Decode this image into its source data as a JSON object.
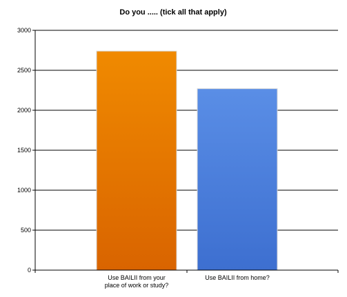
{
  "chart_data": {
    "type": "bar",
    "title": "Do you ..... (tick all that apply)",
    "categories": [
      [
        "Use BAILII from your",
        "place of work or study?"
      ],
      [
        "Use BAILII from home?"
      ]
    ],
    "values": [
      2740,
      2270
    ],
    "colors": [
      "#f08a00",
      "#5a8ee6"
    ],
    "color_gradient_bottom": [
      "#d96400",
      "#3d6fd0"
    ],
    "ylim": [
      0,
      3000
    ],
    "yticks": [
      0,
      500,
      1000,
      1500,
      2000,
      2500,
      3000
    ],
    "grid": true,
    "xlabel": "",
    "ylabel": ""
  }
}
